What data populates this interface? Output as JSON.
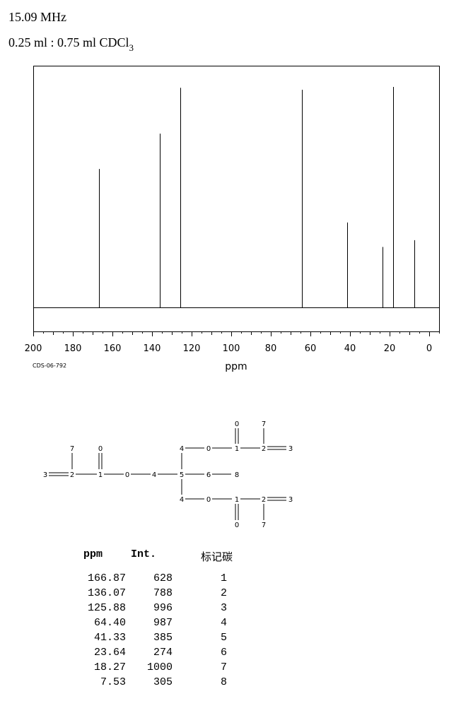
{
  "header": {
    "frequency": "15.09 MHz",
    "solvent_prefix": "0.25 ml : 0.75 ml CDCl",
    "solvent_subscript": "3"
  },
  "spectrum_code": "CDS-06-792",
  "chart_data": {
    "type": "line",
    "title": "",
    "xlabel": "ppm",
    "ylabel": "",
    "xlim": [
      200,
      -5
    ],
    "x_ticks": [
      200,
      180,
      160,
      140,
      120,
      100,
      80,
      60,
      40,
      20,
      0
    ],
    "grid": false,
    "peaks": [
      {
        "ppm": 166.87,
        "intensity": 628
      },
      {
        "ppm": 136.07,
        "intensity": 788
      },
      {
        "ppm": 125.88,
        "intensity": 996
      },
      {
        "ppm": 64.4,
        "intensity": 987
      },
      {
        "ppm": 41.33,
        "intensity": 385
      },
      {
        "ppm": 23.64,
        "intensity": 274
      },
      {
        "ppm": 18.27,
        "intensity": 1000
      },
      {
        "ppm": 7.53,
        "intensity": 305
      }
    ]
  },
  "structure": {
    "atom_labels": {
      "left_3": "3",
      "left_2": "2",
      "left_7": "7",
      "left_1": "1",
      "left_0top": "0",
      "left_0": "0",
      "left_4": "4",
      "center_5": "5",
      "center_6": "6",
      "center_8": "8",
      "top_4": "4",
      "top_0": "0",
      "top_1": "1",
      "top_0up": "0",
      "top_2": "2",
      "top_7": "7",
      "top_3": "3",
      "bot_4": "4",
      "bot_0": "0",
      "bot_1": "1",
      "bot_0down": "0",
      "bot_2": "2",
      "bot_7": "7",
      "bot_3": "3"
    }
  },
  "table": {
    "headers": {
      "ppm": "ppm",
      "int": "Int.",
      "carbon": "标记碳"
    },
    "rows": [
      {
        "ppm": "166.87",
        "int": "628",
        "carbon": "1"
      },
      {
        "ppm": "136.07",
        "int": "788",
        "carbon": "2"
      },
      {
        "ppm": "125.88",
        "int": "996",
        "carbon": "3"
      },
      {
        "ppm": "64.40",
        "int": "987",
        "carbon": "4"
      },
      {
        "ppm": "41.33",
        "int": "385",
        "carbon": "5"
      },
      {
        "ppm": "23.64",
        "int": "274",
        "carbon": "6"
      },
      {
        "ppm": "18.27",
        "int": "1000",
        "carbon": "7"
      },
      {
        "ppm": "7.53",
        "int": "305",
        "carbon": "8"
      }
    ]
  }
}
